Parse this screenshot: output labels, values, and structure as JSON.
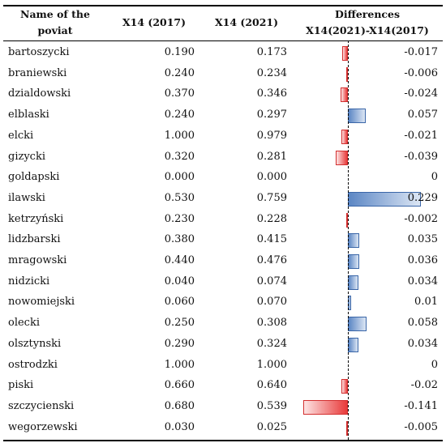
{
  "table": {
    "headers": {
      "name_line1": "Name of the",
      "name_line2": "poviat",
      "col_2017": "X14 (2017)",
      "col_2021": "X14 (2021)",
      "diff_line1": "Differences",
      "diff_line2": "X14(2021)-X14(2017)"
    },
    "rows": [
      {
        "name": "bartoszycki",
        "x2017": "0.190",
        "x2021": "0.173",
        "diff": "-0.017",
        "diff_value": -0.017
      },
      {
        "name": "braniewski",
        "x2017": "0.240",
        "x2021": "0.234",
        "diff": "-0.006",
        "diff_value": -0.006
      },
      {
        "name": "dzialdowski",
        "x2017": "0.370",
        "x2021": "0.346",
        "diff": "-0.024",
        "diff_value": -0.024
      },
      {
        "name": "elblaski",
        "x2017": "0.240",
        "x2021": "0.297",
        "diff": "0.057",
        "diff_value": 0.057
      },
      {
        "name": "elcki",
        "x2017": "1.000",
        "x2021": "0.979",
        "diff": "-0.021",
        "diff_value": -0.021
      },
      {
        "name": "gizycki",
        "x2017": "0.320",
        "x2021": "0.281",
        "diff": "-0.039",
        "diff_value": -0.039
      },
      {
        "name": "goldapski",
        "x2017": "0.000",
        "x2021": "0.000",
        "diff": "0",
        "diff_value": 0
      },
      {
        "name": "ilawski",
        "x2017": "0.530",
        "x2021": "0.759",
        "diff": "0.229",
        "diff_value": 0.229
      },
      {
        "name": "ketrzyński",
        "x2017": "0.230",
        "x2021": "0.228",
        "diff": "-0.002",
        "diff_value": -0.002
      },
      {
        "name": "lidzbarski",
        "x2017": "0.380",
        "x2021": "0.415",
        "diff": "0.035",
        "diff_value": 0.035
      },
      {
        "name": "mragowski",
        "x2017": "0.440",
        "x2021": "0.476",
        "diff": "0.036",
        "diff_value": 0.036
      },
      {
        "name": "nidzicki",
        "x2017": "0.040",
        "x2021": "0.074",
        "diff": "0.034",
        "diff_value": 0.034
      },
      {
        "name": "nowomiejski",
        "x2017": "0.060",
        "x2021": "0.070",
        "diff": "0.01",
        "diff_value": 0.01
      },
      {
        "name": "olecki",
        "x2017": "0.250",
        "x2021": "0.308",
        "diff": "0.058",
        "diff_value": 0.058
      },
      {
        "name": "olsztynski",
        "x2017": "0.290",
        "x2021": "0.324",
        "diff": "0.034",
        "diff_value": 0.034
      },
      {
        "name": "ostrodzki",
        "x2017": "1.000",
        "x2021": "1.000",
        "diff": "0",
        "diff_value": 0
      },
      {
        "name": "piski",
        "x2017": "0.660",
        "x2021": "0.640",
        "diff": "-0.02",
        "diff_value": -0.02
      },
      {
        "name": "szczycienski",
        "x2017": "0.680",
        "x2021": "0.539",
        "diff": "-0.141",
        "diff_value": -0.141
      },
      {
        "name": "wegorzewski",
        "x2017": "0.030",
        "x2021": "0.025",
        "diff": "-0.005",
        "diff_value": -0.005
      }
    ]
  },
  "colors": {
    "negative_bar": "#e83a3a",
    "positive_bar": "#5b86c4"
  }
}
